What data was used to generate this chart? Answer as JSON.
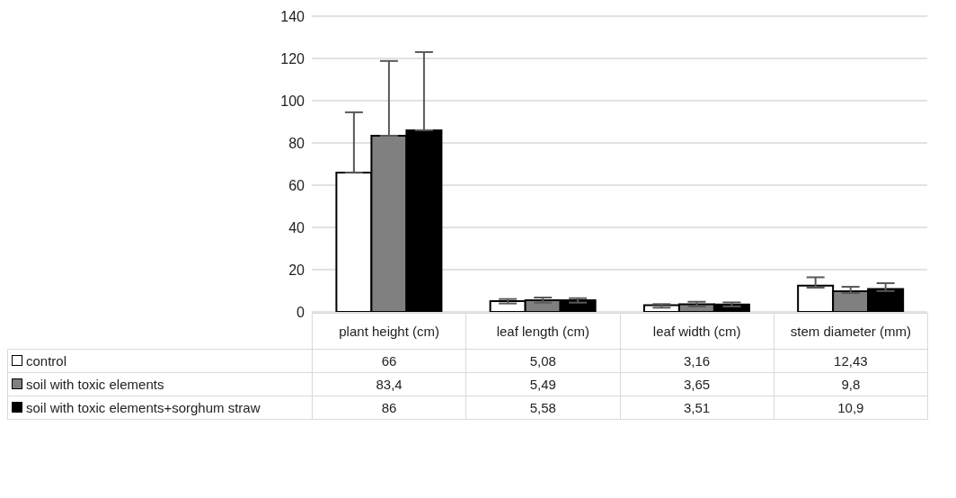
{
  "chart_data": {
    "type": "bar",
    "categories": [
      "plant height (cm)",
      "leaf length (cm)",
      "leaf width (cm)",
      "stem diameter (mm)"
    ],
    "series": [
      {
        "name": "control",
        "color": "#ffffff",
        "values": [
          66,
          5.08,
          3.16,
          12.43
        ],
        "value_labels": [
          "66",
          "5,08",
          "3,16",
          "12,43"
        ],
        "errors": [
          [
            66,
            94.5
          ],
          [
            4.0,
            6.1
          ],
          [
            2.0,
            3.7
          ],
          [
            11.5,
            16.4
          ]
        ]
      },
      {
        "name": "soil with toxic elements",
        "color": "#808080",
        "values": [
          83.4,
          5.49,
          3.65,
          9.8
        ],
        "value_labels": [
          "83,4",
          "5,49",
          "3,65",
          "9,8"
        ],
        "errors": [
          [
            83.4,
            118.8
          ],
          [
            4.4,
            6.8
          ],
          [
            2.6,
            4.8
          ],
          [
            8.9,
            11.9
          ]
        ]
      },
      {
        "name": "soil with toxic elements+sorghum straw",
        "color": "#000000",
        "values": [
          86,
          5.58,
          3.51,
          10.9
        ],
        "value_labels": [
          "86",
          "5,58",
          "3,51",
          "10,9"
        ],
        "errors": [
          [
            86,
            123
          ],
          [
            4.4,
            6.5
          ],
          [
            2.6,
            4.5
          ],
          [
            9.9,
            13.6
          ]
        ]
      }
    ],
    "ylim": [
      0,
      140
    ],
    "yticks": [
      0,
      20,
      40,
      60,
      80,
      100,
      120,
      140
    ],
    "grid": "y",
    "legend": "bottom"
  }
}
